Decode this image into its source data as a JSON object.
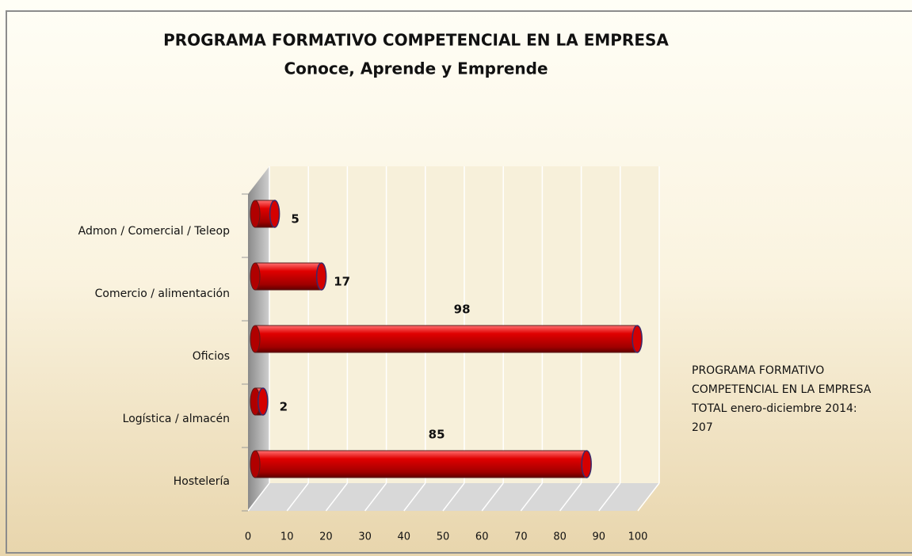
{
  "chart_data": {
    "type": "bar3d_horizontal",
    "title": "PROGRAMA FORMATIVO COMPETENCIAL EN LA EMPRESA",
    "subtitle": "Conoce, Aprende y Emprende",
    "categories": [
      "Admon / Comercial / Teleop",
      "Comercio / alimentación",
      "Oficios",
      "Logística / almacén",
      "Hostelería"
    ],
    "values": [
      5,
      17,
      98,
      2,
      85
    ],
    "color": "#d40000",
    "xlim": [
      0,
      100
    ],
    "xticks": [
      0,
      10,
      20,
      30,
      40,
      50,
      60,
      70,
      80,
      90,
      100
    ],
    "grid": true,
    "annotation": [
      "PROGRAMA FORMATIVO",
      "COMPETENCIAL EN LA EMPRESA",
      "TOTAL enero-diciembre 2014:",
      "207"
    ]
  }
}
